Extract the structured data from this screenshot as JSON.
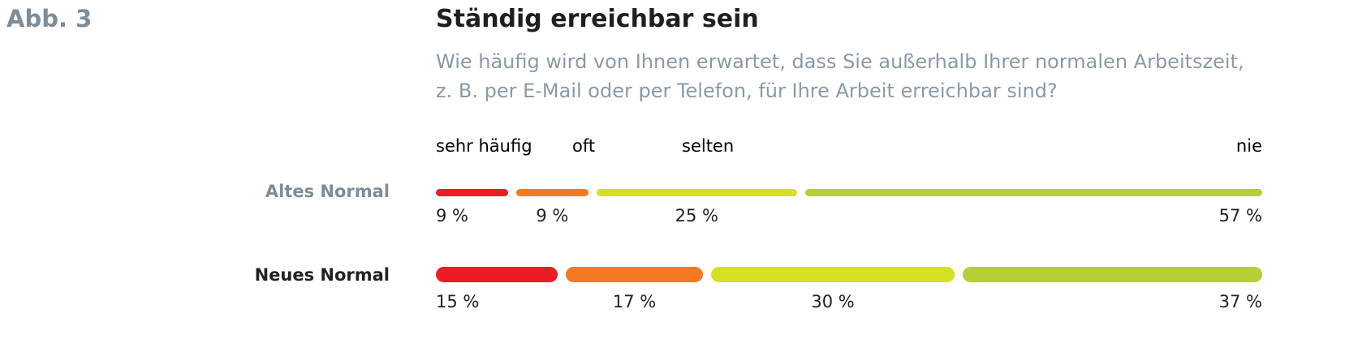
{
  "figure_label": "Abb. 3",
  "chart_data": {
    "type": "bar",
    "stacked": true,
    "orientation": "horizontal",
    "title": "Ständig erreichbar sein",
    "subtitle": [
      "Wie häufig wird von Ihnen erwartet, dass Sie außerhalb Ihrer normalen Arbeitszeit,",
      "z. B. per E-Mail oder per Telefon, für Ihre Arbeit erreichbar sind?"
    ],
    "legend": [
      {
        "name": "sehr häufig",
        "color": "#ED1C24"
      },
      {
        "name": "oft",
        "color": "#F47920"
      },
      {
        "name": "selten",
        "color": "#D4E021"
      },
      {
        "name": "nie",
        "color": "#B5CF35"
      }
    ],
    "categories": [
      "Altes Normal",
      "Neues Normal"
    ],
    "series": [
      {
        "name": "sehr häufig",
        "values": [
          9,
          15
        ],
        "labels": [
          "9 %",
          "15 %"
        ]
      },
      {
        "name": "oft",
        "values": [
          9,
          17
        ],
        "labels": [
          "9 %",
          "17 %"
        ]
      },
      {
        "name": "selten",
        "values": [
          25,
          30
        ],
        "labels": [
          "25 %",
          "30 %"
        ]
      },
      {
        "name": "nie",
        "values": [
          57,
          37
        ],
        "labels": [
          "57 %",
          "37 %"
        ]
      }
    ],
    "unit": "%"
  }
}
